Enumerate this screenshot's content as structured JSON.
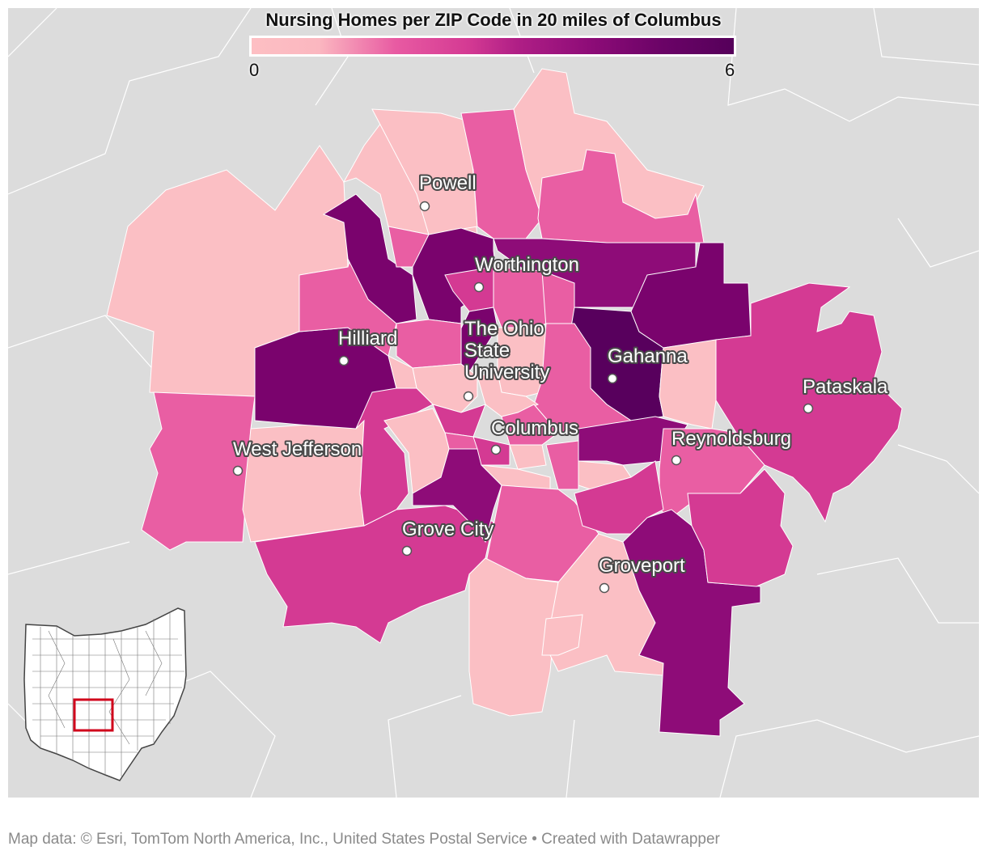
{
  "legend": {
    "title": "Nursing Homes per ZIP Code in 20 miles of Columbus",
    "min_label": "0",
    "max_label": "6",
    "range": [
      0,
      6
    ],
    "colors": [
      "#fbbfc4",
      "#e95ea3",
      "#d43a93",
      "#8e0c78",
      "#7a036d",
      "#58005d"
    ]
  },
  "cities": [
    {
      "name": "Powell"
    },
    {
      "name": "Worthington"
    },
    {
      "name": "Hilliard"
    },
    {
      "name": "The Ohio\nState\nUniversity"
    },
    {
      "name": "Gahanna"
    },
    {
      "name": "Pataskala"
    },
    {
      "name": "West Jefferson"
    },
    {
      "name": "Columbus"
    },
    {
      "name": "Reynoldsburg"
    },
    {
      "name": "Grove City"
    },
    {
      "name": "Groveport"
    }
  ],
  "inset": {
    "state": "Ohio",
    "highlight_color": "#d0021b"
  },
  "attribution": {
    "text": "Map data: © Esri, TomTom North America, Inc., United States Postal Service  • Created with Datawrapper"
  }
}
